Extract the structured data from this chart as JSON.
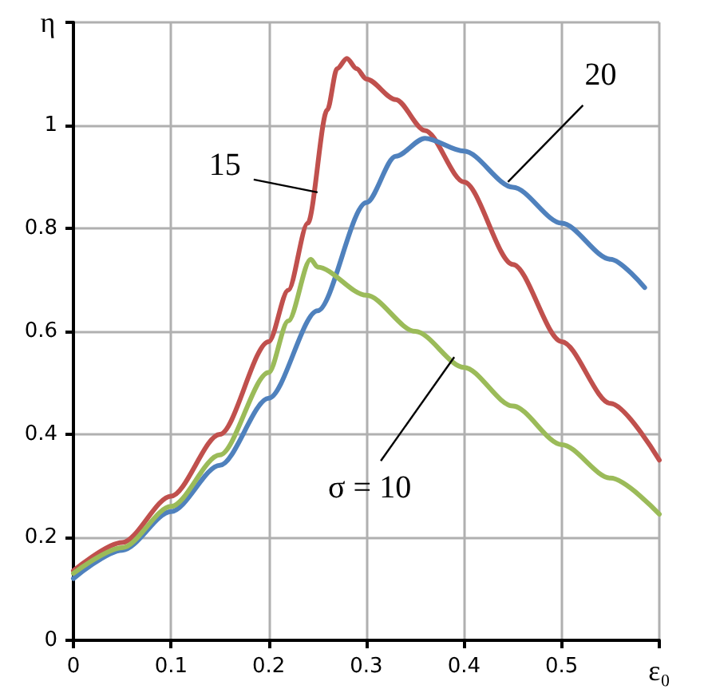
{
  "chart_data": {
    "type": "line",
    "xlabel": "ε₀",
    "ylabel": "η",
    "xlim": [
      0,
      0.6
    ],
    "xticks": [
      0,
      0.1,
      0.2,
      0.3,
      0.4,
      0.5,
      {
        "value": 0.6,
        "label": null
      }
    ],
    "ylim": [
      0,
      1.2
    ],
    "yticks": [
      0,
      0.2,
      0.4,
      0.6,
      0.8,
      1,
      {
        "value": 1.2,
        "label": null
      }
    ],
    "grid": true,
    "marker": "none",
    "line_style": "solid",
    "series": [
      {
        "color": "#c0504d",
        "x": [
          0,
          0.05,
          0.1,
          0.15,
          0.2,
          0.22,
          0.24,
          0.26,
          0.27,
          0.28,
          0.29,
          0.3,
          0.33,
          0.36,
          0.4,
          0.45,
          0.5,
          0.55,
          0.6
        ],
        "values": [
          0.135,
          0.19,
          0.28,
          0.4,
          0.58,
          0.68,
          0.81,
          1.03,
          1.11,
          1.13,
          1.11,
          1.09,
          1.05,
          0.99,
          0.89,
          0.73,
          0.58,
          0.46,
          0.35
        ]
      },
      {
        "color": "#4f81bd",
        "x": [
          0,
          0.05,
          0.1,
          0.15,
          0.2,
          0.25,
          0.3,
          0.33,
          0.36,
          0.4,
          0.45,
          0.5,
          0.55,
          0.585
        ],
        "values": [
          0.12,
          0.175,
          0.25,
          0.34,
          0.47,
          0.64,
          0.85,
          0.94,
          0.975,
          0.95,
          0.88,
          0.81,
          0.74,
          0.685
        ]
      },
      {
        "color": "#9bbb59",
        "x": [
          0,
          0.05,
          0.1,
          0.15,
          0.2,
          0.22,
          0.243,
          0.25,
          0.3,
          0.35,
          0.4,
          0.45,
          0.5,
          0.55,
          0.6
        ],
        "values": [
          0.13,
          0.18,
          0.26,
          0.36,
          0.52,
          0.62,
          0.74,
          0.725,
          0.67,
          0.6,
          0.53,
          0.455,
          0.38,
          0.315,
          0.245
        ]
      }
    ],
    "annotations": [
      {
        "text": "15",
        "x": 0.25,
        "y": 0.87
      },
      {
        "text": "20",
        "x": 0.445,
        "y": 0.89
      },
      {
        "text": "σ = 10",
        "x": 0.39,
        "y": 0.55
      }
    ]
  }
}
